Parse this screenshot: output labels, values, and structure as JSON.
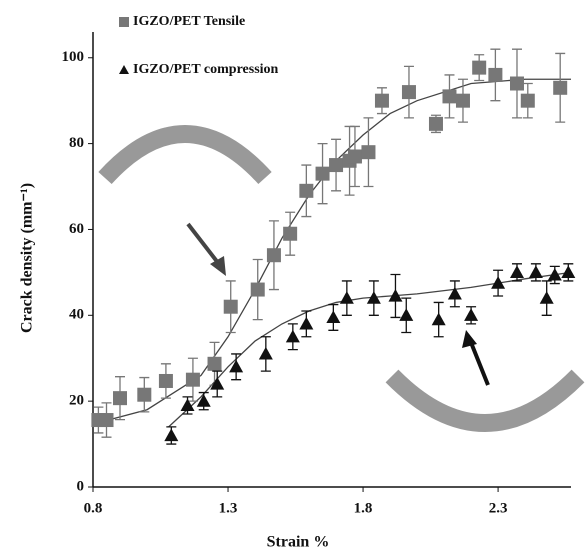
{
  "chart_data": {
    "type": "scatter",
    "xlabel": "Strain %",
    "ylabel": "Crack density (mm⁻¹)",
    "xlim": [
      0.8,
      2.57
    ],
    "xticks": [
      0.8,
      1.3,
      1.8,
      2.3
    ],
    "ylim": [
      0,
      106
    ],
    "yticks": [
      0,
      20,
      40,
      60,
      80,
      100
    ],
    "legend_position": "top-left",
    "series": [
      {
        "name": "IGZO/PET Tensile",
        "color": "#777777",
        "marker": "square",
        "x": [
          0.82,
          0.85,
          0.9,
          0.99,
          1.07,
          1.17,
          1.25,
          1.31,
          1.41,
          1.47,
          1.53,
          1.59,
          1.65,
          1.7,
          1.75,
          1.77,
          1.82,
          1.87,
          1.97,
          2.07,
          2.12,
          2.17,
          2.23,
          2.29,
          2.37,
          2.41,
          2.53
        ],
        "values": [
          15.6,
          15.6,
          20.7,
          21.5,
          24.7,
          25,
          28.7,
          42,
          46,
          54,
          59,
          69,
          73,
          75,
          76,
          77,
          78,
          90,
          92,
          84.6,
          91,
          90,
          97.7,
          96,
          94,
          90,
          93
        ],
        "errors": [
          3,
          4,
          5,
          4,
          4,
          5,
          5,
          6,
          7,
          8,
          5,
          6,
          7,
          6,
          8,
          7,
          8,
          3,
          6,
          2,
          5,
          5,
          3,
          6,
          8,
          4,
          8
        ]
      },
      {
        "name": "IGZO/PET compression",
        "color": "#111111",
        "marker": "triangle",
        "x": [
          1.09,
          1.15,
          1.21,
          1.26,
          1.33,
          1.44,
          1.54,
          1.59,
          1.69,
          1.74,
          1.84,
          1.92,
          1.96,
          2.08,
          2.14,
          2.2,
          2.3,
          2.37,
          2.44,
          2.48,
          2.51,
          2.56
        ],
        "values": [
          12,
          19,
          20,
          24,
          28,
          31,
          35,
          38,
          39.5,
          44,
          44,
          44.5,
          40,
          39,
          45,
          40,
          47.5,
          50,
          50,
          44,
          49.4,
          50
        ],
        "errors": [
          2,
          2,
          2,
          3,
          3,
          4,
          3,
          3,
          3,
          4,
          4,
          5,
          4,
          4,
          3,
          2,
          3,
          2,
          2,
          4,
          2,
          2
        ]
      }
    ],
    "fits": [
      {
        "color": "#444444",
        "x": [
          0.82,
          1.0,
          1.2,
          1.3,
          1.4,
          1.5,
          1.6,
          1.7,
          1.8,
          1.9,
          2.0,
          2.2,
          2.4,
          2.57
        ],
        "values": [
          15,
          18,
          26,
          35,
          46,
          58,
          68,
          76,
          82,
          87,
          90,
          94,
          95,
          95
        ]
      },
      {
        "color": "#444444",
        "x": [
          1.08,
          1.2,
          1.3,
          1.4,
          1.5,
          1.6,
          1.7,
          1.8,
          1.9,
          2.0,
          2.2,
          2.4,
          2.57
        ],
        "values": [
          14,
          21,
          28,
          34,
          38,
          41,
          43,
          44,
          44.5,
          45,
          46.5,
          48.5,
          50
        ]
      }
    ]
  }
}
